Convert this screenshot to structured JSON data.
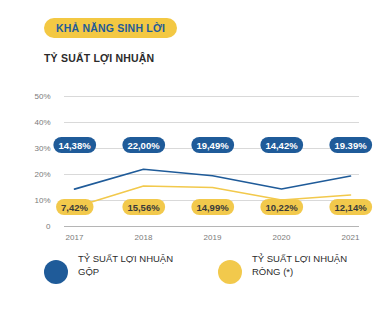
{
  "header": "KHẢ NĂNG SINH LỜI",
  "chart_data": {
    "type": "line",
    "title": "TỶ SUẤT LỢI NHUẬN",
    "categories": [
      "2017",
      "2018",
      "2019",
      "2020",
      "2021"
    ],
    "series": [
      {
        "name": "TỶ SUẤT LỢI NHUẬN GỘP",
        "color": "#1f5b99",
        "values": [
          14.38,
          22.0,
          19.49,
          14.42,
          19.39
        ],
        "value_labels": [
          "14,38%",
          "22,00%",
          "19,49%",
          "14,42%",
          "19.39%"
        ]
      },
      {
        "name": "TỶ SUẤT LỢI NHUẬN RÒNG (*)",
        "color": "#f2c94c",
        "values": [
          7.42,
          15.56,
          14.99,
          10.22,
          12.14
        ],
        "value_labels": [
          "7,42%",
          "15,56%",
          "14,99%",
          "10,22%",
          "12,14%"
        ]
      }
    ],
    "ylim": [
      0,
      50
    ],
    "yticks": [
      0,
      {
        "value": 10,
        "label": "10%"
      },
      {
        "value": 20,
        "label": "20%"
      },
      {
        "value": 30,
        "label": "30%"
      },
      {
        "value": 40,
        "label": "40%"
      },
      {
        "value": 50,
        "label": "50%"
      }
    ],
    "grid": true,
    "data_labels": true,
    "legend": "bottom"
  }
}
